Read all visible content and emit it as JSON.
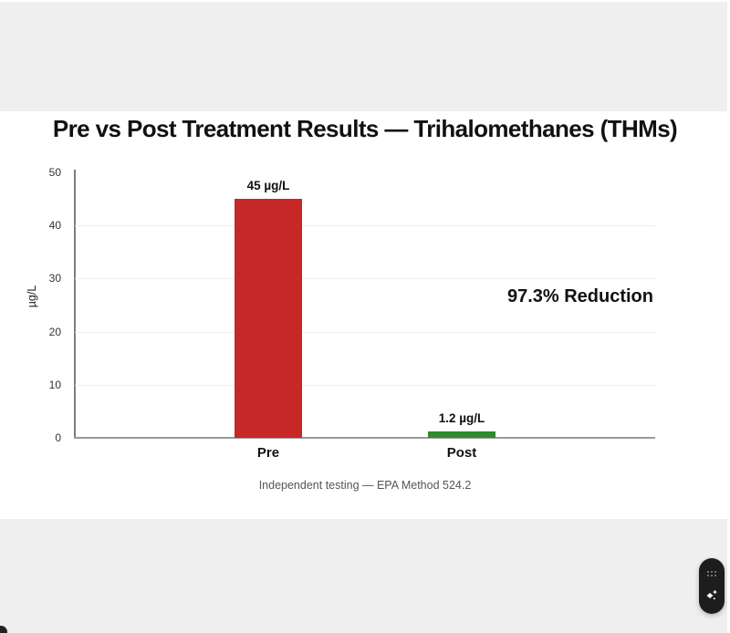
{
  "page": {
    "title": "Pre vs Post Treatment Results — Trihalomethanes (THMs)",
    "annotation": "97.3% Reduction",
    "caption": "Independent testing — EPA Method 524.2",
    "band_color": "#efefef"
  },
  "chart_data": {
    "type": "bar",
    "title": "Pre vs Post Treatment Results — Trihalomethanes (THMs)",
    "categories": [
      "Pre",
      "Post"
    ],
    "values": [
      45,
      1.2
    ],
    "bar_labels": [
      "45 µg/L",
      "1.2 µg/L"
    ],
    "bar_colors": [
      "#c62828",
      "#2f8a2f"
    ],
    "xlabel": "",
    "ylabel": "µg/L",
    "ylim": [
      0,
      50
    ],
    "yticks": [
      0,
      10,
      20,
      30,
      40,
      50
    ],
    "grid": true,
    "legend": "none",
    "annotation": "97.3% Reduction",
    "caption": "Independent testing — EPA Method 524.2"
  },
  "widget": {
    "background": "#1d1d1d",
    "icons": [
      "drag-handle-dots-icon",
      "sparkle-icon"
    ]
  }
}
